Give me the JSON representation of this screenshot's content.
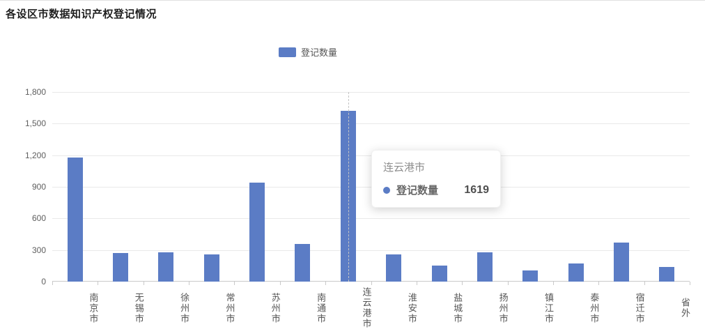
{
  "title": "各设区市数据知识产权登记情况",
  "legend": {
    "label": "登记数量",
    "color": "#5b7cc5"
  },
  "tooltip": {
    "city": "连云港市",
    "series": "登记数量",
    "value": "1619"
  },
  "chart_data": {
    "type": "bar",
    "title": "各设区市数据知识产权登记情况",
    "categories": [
      "南京市",
      "无锡市",
      "徐州市",
      "常州市",
      "苏州市",
      "南通市",
      "连云港市",
      "淮安市",
      "盐城市",
      "扬州市",
      "镇江市",
      "泰州市",
      "宿迁市",
      "省外"
    ],
    "series": [
      {
        "name": "登记数量",
        "values": [
          1180,
          270,
          275,
          260,
          940,
          360,
          1619,
          255,
          150,
          280,
          105,
          170,
          370,
          140
        ]
      }
    ],
    "xlabel": "",
    "ylabel": "",
    "ylim": [
      0,
      1800
    ],
    "ytick_labels": [
      "1,800",
      "1,500",
      "1,200",
      "900",
      "600",
      "300",
      "0"
    ],
    "bar_color": "#5b7cc5",
    "grid": true,
    "legend_position": "top-center",
    "highlighted_category_index": 6,
    "tooltip": {
      "category": "连云港市",
      "series": "登记数量",
      "value": 1619
    }
  }
}
